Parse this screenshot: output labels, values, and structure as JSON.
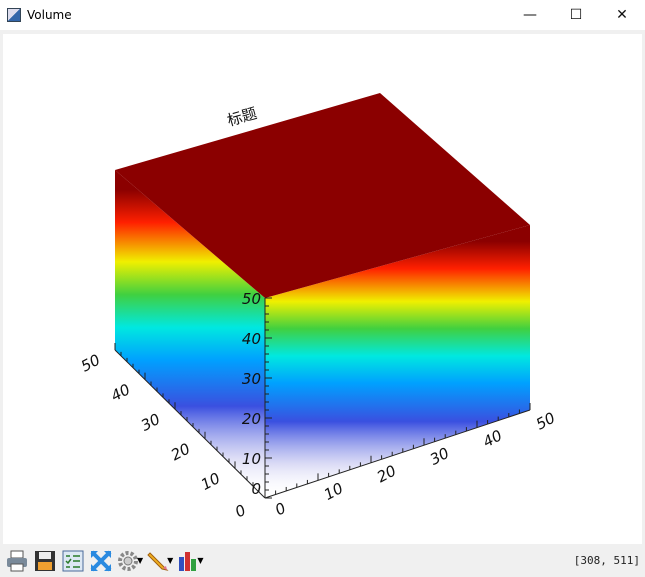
{
  "window": {
    "title": "Volume",
    "minimize": "—",
    "maximize": "☐",
    "close": "✕"
  },
  "plot": {
    "title": "标题",
    "colormap": "rainbow (transparent-blue-cyan-green-yellow-red-darkred)",
    "top_color": "#8b0000"
  },
  "axes": {
    "x": {
      "ticks": [
        "0",
        "10",
        "20",
        "30",
        "40",
        "50"
      ],
      "range": [
        0,
        50
      ]
    },
    "y": {
      "ticks": [
        "0",
        "10",
        "20",
        "30",
        "40",
        "50"
      ],
      "range": [
        0,
        50
      ]
    },
    "z": {
      "ticks": [
        "0",
        "10",
        "20",
        "30",
        "40",
        "50"
      ],
      "range": [
        0,
        50
      ]
    }
  },
  "toolbar": [
    {
      "name": "print-icon"
    },
    {
      "name": "save-icon"
    },
    {
      "name": "properties-icon"
    },
    {
      "name": "reset-view-icon"
    },
    {
      "name": "gear-icon",
      "dropdown": true
    },
    {
      "name": "pencil-icon",
      "dropdown": true
    },
    {
      "name": "bar-chart-icon",
      "dropdown": true
    }
  ],
  "status": {
    "coords": "[308, 511]"
  }
}
